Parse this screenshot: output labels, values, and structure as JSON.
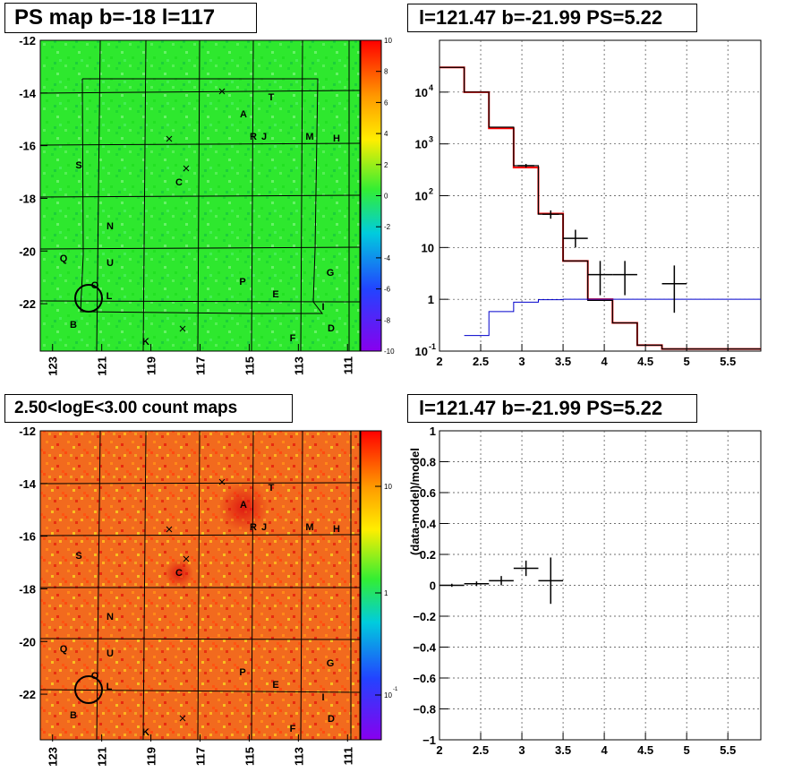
{
  "panels": {
    "ps_map": {
      "title": "PS map b=-18 l=117",
      "colorbar_ticks": [
        "10",
        "8",
        "6",
        "4",
        "2",
        "0",
        "-2",
        "-4",
        "-6",
        "-8",
        "-10"
      ],
      "y_ticks": [
        "-12",
        "-14",
        "-16",
        "-18",
        "-20",
        "-22"
      ],
      "x_ticks": [
        "123",
        "121",
        "119",
        "117",
        "115",
        "113",
        "111"
      ]
    },
    "count_map": {
      "title": "2.50<logE<3.00 count maps",
      "colorbar_ticks": [
        "10",
        "1",
        "10"
      ],
      "colorbar_tick_exponent": "-1",
      "y_ticks": [
        "-12",
        "-14",
        "-16",
        "-18",
        "-20",
        "-22"
      ],
      "x_ticks": [
        "123",
        "121",
        "119",
        "117",
        "115",
        "113",
        "111"
      ]
    },
    "sources": [
      {
        "label": "T"
      },
      {
        "label": "A"
      },
      {
        "label": "R"
      },
      {
        "label": "J"
      },
      {
        "label": "M"
      },
      {
        "label": "H"
      },
      {
        "label": "S"
      },
      {
        "label": "C"
      },
      {
        "label": "N"
      },
      {
        "label": "Q"
      },
      {
        "label": "U"
      },
      {
        "label": "O"
      },
      {
        "label": "L"
      },
      {
        "label": "G"
      },
      {
        "label": "P"
      },
      {
        "label": "E"
      },
      {
        "label": "I"
      },
      {
        "label": "B"
      },
      {
        "label": "D"
      },
      {
        "label": "K"
      },
      {
        "label": "F"
      }
    ]
  },
  "chart_data": [
    {
      "type": "heatmap",
      "title": "PS map b=-18 l=117",
      "xlim": [
        123.5,
        110.5
      ],
      "ylim": [
        -23.8,
        -12
      ],
      "xticks": [
        123,
        121,
        119,
        117,
        115,
        113,
        111
      ],
      "yticks": [
        -12,
        -14,
        -16,
        -18,
        -20,
        -22
      ],
      "zlim": [
        -10,
        10
      ],
      "zticks": [
        10,
        8,
        6,
        4,
        2,
        0,
        -2,
        -4,
        -6,
        -8,
        -10
      ],
      "colormap": "rainbow",
      "dominant_value": 0,
      "dominant_color": "#33ee33",
      "xlabel": "",
      "ylabel": ""
    },
    {
      "type": "line",
      "title": "l=121.47 b=-21.99 PS=5.22",
      "xlim": [
        2,
        5.9
      ],
      "xticks": [
        2,
        2.5,
        3,
        3.5,
        4,
        4.5,
        5,
        5.5
      ],
      "ylim": [
        0.1,
        100000
      ],
      "yscale": "log",
      "ytick_labels": [
        "10^-1",
        "1",
        "10",
        "10^2",
        "10^3",
        "10^4"
      ],
      "grid": true,
      "series": [
        {
          "color": "#ff0000",
          "style": "step",
          "edges": [
            2,
            2.3,
            2.6,
            2.9,
            3.2,
            3.5,
            3.8,
            4.1,
            4.4,
            4.7,
            5.9
          ],
          "values": [
            30000,
            10000,
            2000,
            350,
            45,
            5.5,
            1.0,
            0.35,
            0.13,
            0.11
          ]
        },
        {
          "color": "#000000",
          "style": "step",
          "edges": [
            2,
            2.3,
            2.6,
            2.9,
            3.2,
            3.5,
            3.8,
            4.1,
            4.4,
            4.7,
            5.9
          ],
          "values": [
            30000,
            10000,
            2100,
            380,
            44,
            5.5,
            0.95,
            0.35,
            0.13,
            0.11
          ]
        },
        {
          "color": "#0000cc",
          "style": "step",
          "edges": [
            2.3,
            2.6,
            2.9,
            3.2,
            3.5,
            3.8,
            4.1,
            5.9
          ],
          "values": [
            0.2,
            0.58,
            0.88,
            0.98,
            1.0,
            1.0,
            1.0
          ]
        },
        {
          "color": "#000000",
          "style": "errorbar",
          "x": [
            3.05,
            3.35,
            3.65,
            3.95,
            4.25,
            4.85
          ],
          "xerr": [
            0.1,
            0.1,
            0.15,
            0.15,
            0.15,
            0.15
          ],
          "y": [
            380,
            44,
            15,
            3,
            3,
            2
          ],
          "ylo": [
            350,
            36,
            10,
            1.2,
            1.2,
            0.55
          ],
          "yhi": [
            410,
            52,
            22,
            5.5,
            5.5,
            4.5
          ]
        }
      ]
    },
    {
      "type": "heatmap",
      "title": "2.50<logE<3.00 count maps",
      "xlim": [
        123.5,
        110.5
      ],
      "ylim": [
        -23.8,
        -12
      ],
      "xticks": [
        123,
        121,
        119,
        117,
        115,
        113,
        111
      ],
      "yticks": [
        -12,
        -14,
        -16,
        -18,
        -20,
        -22
      ],
      "zscale": "log",
      "ztick_labels": [
        "10",
        "1",
        "10^-1"
      ],
      "colormap": "rainbow",
      "dominant_color": "#ee6622",
      "xlabel": "",
      "ylabel": ""
    },
    {
      "type": "scatter",
      "title": "l=121.47 b=-21.99 PS=5.22",
      "xlim": [
        2,
        5.9
      ],
      "xticks": [
        2,
        2.5,
        3,
        3.5,
        4,
        4.5,
        5,
        5.5
      ],
      "ylim": [
        -1,
        1
      ],
      "yticks": [
        -1,
        -0.8,
        -0.6,
        -0.4,
        -0.2,
        0,
        0.2,
        0.4,
        0.6,
        0.8,
        1
      ],
      "ylabel": "(data-model)/model",
      "xlabel": "",
      "grid": true,
      "series": [
        {
          "color": "#000000",
          "style": "errorbar",
          "x": [
            2.15,
            2.45,
            2.75,
            3.05,
            3.35
          ],
          "xerr": [
            0.15,
            0.15,
            0.15,
            0.15,
            0.15
          ],
          "y": [
            0.0,
            0.01,
            0.03,
            0.11,
            0.03
          ],
          "yerr": [
            0.01,
            0.015,
            0.03,
            0.05,
            0.15
          ]
        }
      ]
    }
  ]
}
